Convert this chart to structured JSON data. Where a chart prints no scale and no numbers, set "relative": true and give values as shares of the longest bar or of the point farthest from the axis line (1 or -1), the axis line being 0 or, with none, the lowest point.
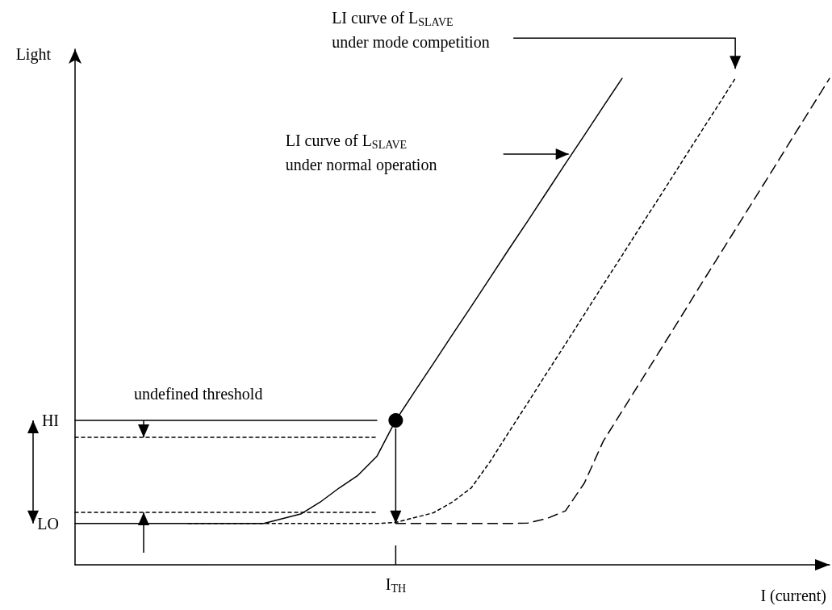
{
  "chart_data": {
    "type": "line",
    "relative": true,
    "xlabel": "I (current)",
    "ylabel": "Light",
    "categories": [
      null,
      null,
      null,
      null,
      null,
      null,
      null,
      null,
      null,
      null,
      null,
      null,
      null,
      null,
      null,
      null,
      null,
      null,
      null,
      null,
      null,
      null,
      null,
      null,
      null,
      null,
      null,
      null,
      null,
      null,
      null,
      null,
      null,
      null,
      null,
      null,
      null,
      null,
      null,
      null,
      null
    ],
    "series": [
      {
        "line_style": "solid",
        "color": "#000000",
        "values": [
          0.085,
          0.085,
          0.085,
          0.085,
          0.085,
          0.085,
          0.085,
          0.085,
          0.085,
          0.085,
          0.085,
          0.095,
          0.105,
          0.129,
          0.158,
          0.184,
          0.223,
          0.297,
          0.356,
          0.414,
          0.473,
          0.531,
          0.59,
          0.649,
          0.707,
          0.766,
          0.825,
          0.883,
          0.942,
          1,
          null,
          null,
          null,
          null,
          null,
          null,
          null,
          null,
          null,
          null,
          null
        ]
      },
      {
        "line_style": "dotted",
        "color": "#000000",
        "values": [
          null,
          null,
          null,
          null,
          null,
          null,
          0.085,
          0.085,
          0.085,
          0.085,
          0.085,
          0.085,
          0.085,
          0.085,
          0.085,
          0.085,
          0.085,
          0.087,
          0.097,
          0.107,
          0.129,
          0.158,
          0.212,
          0.273,
          0.333,
          0.394,
          0.454,
          0.515,
          0.576,
          0.636,
          0.697,
          0.757,
          0.818,
          0.879,
          0.939,
          1,
          null,
          null,
          null,
          null,
          null
        ]
      },
      {
        "line_style": "dashed",
        "color": "#000000",
        "values": [
          null,
          null,
          null,
          null,
          null,
          null,
          null,
          null,
          null,
          null,
          null,
          null,
          null,
          null,
          null,
          null,
          null,
          0.085,
          0.085,
          0.085,
          0.085,
          0.085,
          0.085,
          0.085,
          0.086,
          0.095,
          0.111,
          0.168,
          0.254,
          0.316,
          0.378,
          0.44,
          0.502,
          0.565,
          0.627,
          0.689,
          0.751,
          0.813,
          0.876,
          0.938,
          1
        ]
      },
      {
        "line_style": "solid",
        "color": "#000000",
        "values": [
          0.297,
          0.297,
          0.297,
          0.297,
          0.297,
          0.297,
          0.297,
          0.297,
          0.297,
          0.297,
          0.297,
          0.297,
          0.297,
          0.297,
          0.297,
          0.297,
          0.297,
          null,
          null,
          null,
          null,
          null,
          null,
          null,
          null,
          null,
          null,
          null,
          null,
          null,
          null,
          null,
          null,
          null,
          null,
          null,
          null,
          null,
          null,
          null,
          null
        ]
      },
      {
        "line_style": "dotted",
        "color": "#000000",
        "values": [
          0.262,
          0.262,
          0.262,
          0.262,
          0.262,
          0.262,
          0.262,
          0.262,
          0.262,
          0.262,
          0.262,
          0.262,
          0.262,
          0.262,
          0.262,
          0.262,
          0.262,
          null,
          null,
          null,
          null,
          null,
          null,
          null,
          null,
          null,
          null,
          null,
          null,
          null,
          null,
          null,
          null,
          null,
          null,
          null,
          null,
          null,
          null,
          null,
          null
        ]
      },
      {
        "line_style": "dotted",
        "color": "#000000",
        "values": [
          0.108,
          0.108,
          0.108,
          0.108,
          0.108,
          0.108,
          0.108,
          0.108,
          0.108,
          0.108,
          0.108,
          0.108,
          0.108,
          0.108,
          0.108,
          0.108,
          0.108,
          null,
          null,
          null,
          null,
          null,
          null,
          null,
          null,
          null,
          null,
          null,
          null,
          null,
          null,
          null,
          null,
          null,
          null,
          null,
          null,
          null,
          null,
          null,
          null
        ]
      }
    ],
    "annotations": [
      "LI curve of L$_{SLAVE}$\nunder normal operation",
      "LI curve of L$_{SLAVE}$\nunder mode competition",
      "undefined threshold",
      "HI",
      "LO",
      "I$_{TH}$"
    ]
  }
}
